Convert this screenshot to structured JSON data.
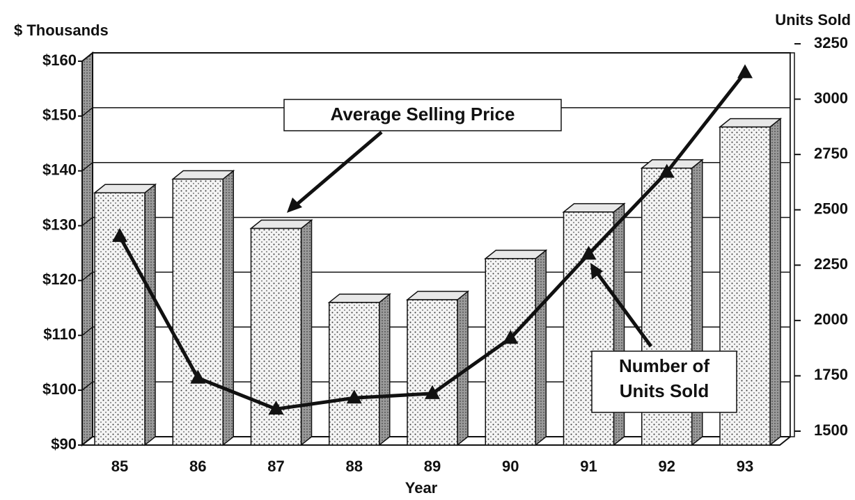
{
  "chart_data": {
    "type": "bar_line",
    "y_label": "$ Thousands",
    "y2_label": "Units Sold",
    "x_label": "Year",
    "categories": [
      "85",
      "86",
      "87",
      "88",
      "89",
      "90",
      "91",
      "92",
      "93"
    ],
    "series": [
      {
        "name": "Average Selling Price",
        "type": "bar",
        "color": "#e8e8e8",
        "values": [
          136,
          138.5,
          129.5,
          116,
          116.5,
          124,
          132.5,
          140.5,
          148
        ]
      },
      {
        "name": "Number of Units Sold",
        "type": "line",
        "axis": "y2",
        "color": "#111111",
        "values": [
          2380,
          1740,
          1600,
          1650,
          1670,
          1920,
          2300,
          2670,
          3120
        ]
      }
    ],
    "annotations": [
      {
        "lines": [
          "Average Selling Price"
        ]
      },
      {
        "lines": [
          "Number of",
          "Units Sold"
        ]
      }
    ],
    "ylim": [
      90,
      160
    ],
    "yticks": [
      {
        "value": 90,
        "label": "$90"
      },
      {
        "value": 100,
        "label": "$100"
      },
      {
        "value": 110,
        "label": "$110"
      },
      {
        "value": 120,
        "label": "$120"
      },
      {
        "value": 130,
        "label": "$130"
      },
      {
        "value": 140,
        "label": "$140"
      },
      {
        "value": 150,
        "label": "$150"
      },
      {
        "value": 160,
        "label": "$160"
      }
    ],
    "y2lim": [
      1500,
      3250
    ],
    "y2ticks": [
      1500,
      1750,
      2000,
      2250,
      2500,
      2750,
      3000,
      3250
    ],
    "grid": true
  }
}
